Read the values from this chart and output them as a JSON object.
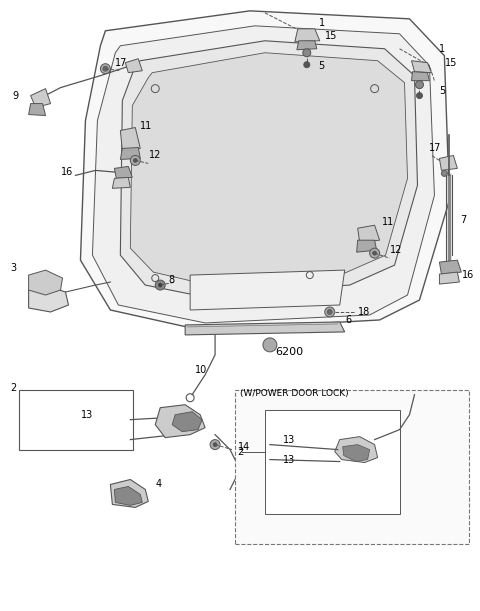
{
  "bg_color": "#ffffff",
  "fig_width": 4.8,
  "fig_height": 6.11,
  "dpi": 100,
  "line_color": "#555555",
  "light_gray": "#cccccc",
  "part_color": "#888888"
}
